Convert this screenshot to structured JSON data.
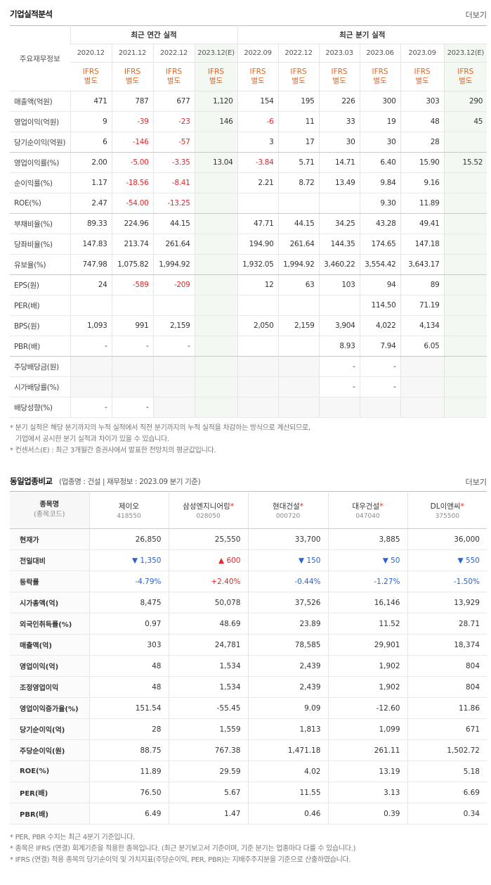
{
  "performance": {
    "title": "기업실적분석",
    "more": "더보기",
    "row_header": "주요재무정보",
    "groups": [
      {
        "label": "최근 연간 실적",
        "columns": [
          {
            "period": "2020.12",
            "basis": [
              "IFRS",
              "별도"
            ]
          },
          {
            "period": "2021.12",
            "basis": [
              "IFRS",
              "별도"
            ]
          },
          {
            "period": "2022.12",
            "basis": [
              "IFRS",
              "별도"
            ]
          },
          {
            "period": "2023.12(E)",
            "basis": [
              "IFRS",
              "별도"
            ]
          }
        ]
      },
      {
        "label": "최근 분기 실적",
        "columns": [
          {
            "period": "2022.09",
            "basis": [
              "IFRS",
              "별도"
            ]
          },
          {
            "period": "2022.12",
            "basis": [
              "IFRS",
              "별도"
            ]
          },
          {
            "period": "2023.03",
            "basis": [
              "IFRS",
              "별도"
            ]
          },
          {
            "period": "2023.06",
            "basis": [
              "IFRS",
              "별도"
            ]
          },
          {
            "period": "2023.09",
            "basis": [
              "IFRS",
              "별도"
            ]
          },
          {
            "period": "2023.12(E)",
            "basis": [
              "IFRS",
              "별도"
            ]
          }
        ]
      }
    ],
    "rows": [
      {
        "label": "매출액(억원)",
        "values": [
          [
            "471",
            "787",
            "677",
            "1,120"
          ],
          [
            "154",
            "195",
            "226",
            "300",
            "303",
            "290"
          ]
        ]
      },
      {
        "label": "영업이익(억원)",
        "values": [
          [
            "9",
            "-39",
            "-23",
            "146"
          ],
          [
            "-6",
            "11",
            "33",
            "19",
            "48",
            "45"
          ]
        ]
      },
      {
        "label": "당기순이익(억원)",
        "values": [
          [
            "6",
            "-146",
            "-57",
            null
          ],
          [
            "3",
            "17",
            "30",
            "30",
            "28",
            null
          ]
        ]
      },
      {
        "label": "영업이익률(%)",
        "values": [
          [
            "2.00",
            "-5.00",
            "-3.35",
            "13.04"
          ],
          [
            "-3.84",
            "5.71",
            "14.71",
            "6.40",
            "15.90",
            "15.52"
          ]
        ]
      },
      {
        "label": "순이익률(%)",
        "values": [
          [
            "1.17",
            "-18.56",
            "-8.41",
            null
          ],
          [
            "2.21",
            "8.72",
            "13.49",
            "9.84",
            "9.16",
            null
          ]
        ]
      },
      {
        "label": "ROE(%)",
        "values": [
          [
            "2.47",
            "-54.00",
            "-13.25",
            null
          ],
          [
            null,
            null,
            null,
            "9.30",
            "11.89",
            null
          ]
        ]
      },
      {
        "label": "부채비율(%)",
        "values": [
          [
            "89.33",
            "224.96",
            "44.15",
            null
          ],
          [
            "47.71",
            "44.15",
            "34.25",
            "43.28",
            "49.41",
            null
          ]
        ]
      },
      {
        "label": "당좌비율(%)",
        "values": [
          [
            "147.83",
            "213.74",
            "261.64",
            null
          ],
          [
            "194.90",
            "261.64",
            "144.35",
            "174.65",
            "147.18",
            null
          ]
        ]
      },
      {
        "label": "유보율(%)",
        "values": [
          [
            "747.98",
            "1,075.82",
            "1,994.92",
            null
          ],
          [
            "1,932.05",
            "1,994.92",
            "3,460.22",
            "3,554.42",
            "3,643.17",
            null
          ]
        ]
      },
      {
        "label": "EPS(원)",
        "values": [
          [
            "24",
            "-589",
            "-209",
            null
          ],
          [
            "12",
            "63",
            "103",
            "94",
            "89",
            null
          ]
        ]
      },
      {
        "label": "PER(배)",
        "values": [
          [
            null,
            null,
            null,
            null
          ],
          [
            null,
            null,
            null,
            "114.50",
            "71.19",
            null
          ]
        ]
      },
      {
        "label": "BPS(원)",
        "values": [
          [
            "1,093",
            "991",
            "2,159",
            null
          ],
          [
            "2,050",
            "2,159",
            "3,904",
            "4,022",
            "4,134",
            null
          ]
        ]
      },
      {
        "label": "PBR(배)",
        "values": [
          [
            "-",
            "-",
            "-",
            null
          ],
          [
            null,
            null,
            "8.93",
            "7.94",
            "6.05",
            null
          ]
        ]
      },
      {
        "label": "주당배당금(원)",
        "values": [
          [
            null,
            null,
            null,
            null
          ],
          [
            null,
            null,
            "-",
            "-",
            null,
            null
          ]
        ]
      },
      {
        "label": "시가배당률(%)",
        "values": [
          [
            null,
            null,
            null,
            null
          ],
          [
            null,
            null,
            "-",
            "-",
            null,
            null
          ]
        ]
      },
      {
        "label": "배당성향(%)",
        "values": [
          [
            "-",
            "-",
            null,
            null
          ],
          [
            null,
            null,
            null,
            null,
            null,
            null
          ]
        ]
      }
    ],
    "notes": [
      "* 분기 실적은 해당 분기까지의 누적 실적에서 직전 분기까지의 누적 실적을 차감하는 방식으로 계산되므로,",
      "기업에서 공시한 분기 실적과 차이가 있을 수 있습니다.",
      "* 컨센서스(E) : 최근 3개월간 증권사에서 발표한 전망치의 평균값입니다."
    ]
  },
  "peers": {
    "title": "동일업종비교",
    "subtitle": "(업종명 : 건설 | 재무정보 : 2023.09 분기 기준)",
    "more": "더보기",
    "header": [
      "종목명",
      "(종목코드)"
    ],
    "companies": [
      {
        "name": "제이오",
        "code": "418550"
      },
      {
        "name": "삼성엔지니어링",
        "marker": "*",
        "code": "028050"
      },
      {
        "name": "현대건설",
        "marker": "*",
        "code": "000720"
      },
      {
        "name": "대우건설",
        "marker": "*",
        "code": "047040"
      },
      {
        "name": "DL이앤씨",
        "marker": "*",
        "code": "375500"
      }
    ],
    "rows": [
      {
        "label": "현재가",
        "values": [
          "26,850",
          "25,550",
          "33,700",
          "3,885",
          "36,000"
        ]
      },
      {
        "label": "전일대비",
        "values": [
          "▼ 1,350",
          "▲ 600",
          "▼ 150",
          "▼ 50",
          "▼ 550"
        ]
      },
      {
        "label": "등락률",
        "values": [
          "-4.79%",
          "+2.40%",
          "-0.44%",
          "-1.27%",
          "-1.50%"
        ]
      },
      {
        "label": "시가총액(억)",
        "values": [
          "8,475",
          "50,078",
          "37,526",
          "16,146",
          "13,929"
        ]
      },
      {
        "label": "외국인취득률(%)",
        "values": [
          "0.97",
          "48.69",
          "23.89",
          "11.52",
          "28.71"
        ]
      },
      {
        "label": "매출액(억)",
        "values": [
          "303",
          "24,781",
          "78,585",
          "29,901",
          "18,374"
        ]
      },
      {
        "label": "영업이익(억)",
        "values": [
          "48",
          "1,534",
          "2,439",
          "1,902",
          "804"
        ]
      },
      {
        "label": "조정영업이익",
        "values": [
          "48",
          "1,534",
          "2,439",
          "1,902",
          "804"
        ]
      },
      {
        "label": "영업이익증가율(%)",
        "values": [
          "151.54",
          "-55.45",
          "9.09",
          "-12.60",
          "11.86"
        ]
      },
      {
        "label": "당기순이익(억)",
        "values": [
          "28",
          "1,559",
          "1,813",
          "1,099",
          "671"
        ]
      },
      {
        "label": "주당순이익(원)",
        "values": [
          "88.75",
          "767.38",
          "1,471.18",
          "261.11",
          "1,502.72"
        ]
      },
      {
        "label": "ROE(%)",
        "values": [
          "11.89",
          "29.59",
          "4.02",
          "13.19",
          "5.18"
        ]
      },
      {
        "label": "PER(배)",
        "values": [
          "76.50",
          "5.67",
          "11.55",
          "3.13",
          "6.69"
        ]
      },
      {
        "label": "PBR(배)",
        "values": [
          "6.49",
          "1.47",
          "0.46",
          "0.39",
          "0.34"
        ]
      }
    ],
    "notes": [
      "* PER, PBR 수치는 최근 4분기 기준입니다.",
      "* 종목은 IFRS (연결) 회계기준을 적용한 종목입니다. (최근 분기보고서 기준이며, 기준 분기는 업종마다 다를 수 있습니다.)",
      "* IFRS (연결) 적용 종목의 당기순이익 및 가치지표(주당순이익, PER, PBR)는 지배주주지분을 기준으로 산출하였습니다."
    ]
  }
}
